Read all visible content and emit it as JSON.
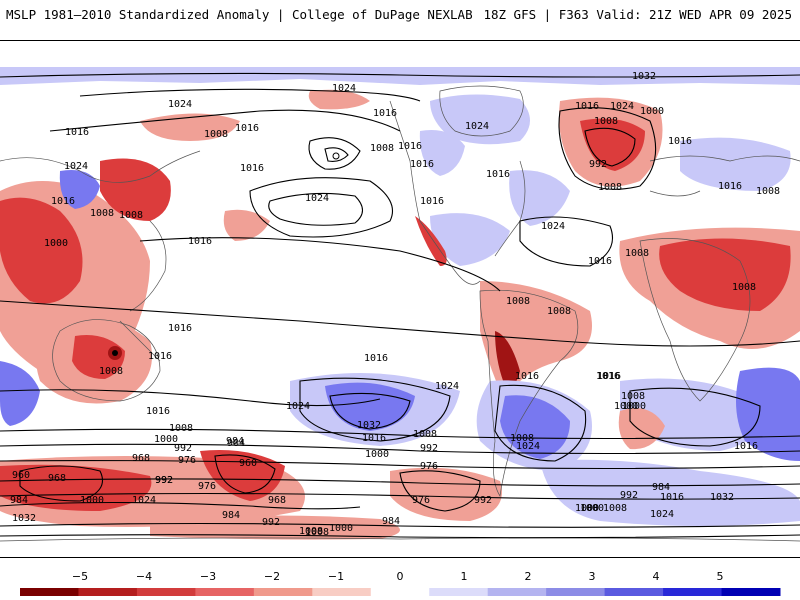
{
  "header": {
    "title_left": "MSLP 1981–2010 Standardized Anomaly | College of DuPage NEXLAB",
    "title_right": "18Z GFS | F363 Valid: 21Z WED APR 09 2025"
  },
  "colors": {
    "strong_negative": "#a01414",
    "negative": "#dc3c3c",
    "weak_negative": "#f0a096",
    "strong_positive": "#1e1ee6",
    "positive": "#7878f0",
    "weak_positive": "#c8c8f8",
    "isobar": "#000000",
    "coastline": "#555555"
  },
  "colorbar": {
    "ticks": [
      "−5",
      "−4",
      "−3",
      "−2",
      "−1",
      "0",
      "1",
      "2",
      "3",
      "4",
      "5"
    ],
    "colors": [
      "#7a0000",
      "#b41e1e",
      "#d23c3c",
      "#e66464",
      "#f09a8c",
      "#f8cdc4",
      "#ffffff",
      "#dcdcfa",
      "#b4b4f0",
      "#8c8ce6",
      "#5a5ae0",
      "#2828d8",
      "#0000b4"
    ]
  },
  "isobar_labels": [
    "1032",
    "1024",
    "1016",
    "1008",
    "1016",
    "1024",
    "1016",
    "1008",
    "1016",
    "1016",
    "1024",
    "1016",
    "1008",
    "1000",
    "1008",
    "1016",
    "1024",
    "1016",
    "1016",
    "1008",
    "1016",
    "1032",
    "1024",
    "1016",
    "1024",
    "1000",
    "1008",
    "992",
    "1008",
    "1016",
    "1016",
    "1008",
    "1008",
    "1016",
    "1008",
    "1008",
    "1016",
    "1024",
    "1024",
    "1016",
    "1016",
    "1016",
    "1008",
    "1016",
    "1024",
    "1032",
    "1016",
    "1008",
    "1000",
    "1000",
    "992",
    "984",
    "1008",
    "1016",
    "1000",
    "992",
    "1024",
    "1016",
    "1016",
    "1008",
    "1000",
    "992",
    "984",
    "976",
    "968",
    "960",
    "968",
    "984",
    "992",
    "1000",
    "1024",
    "976",
    "968",
    "960",
    "984",
    "992",
    "1008",
    "1000",
    "976",
    "976",
    "984",
    "992",
    "1000",
    "1008",
    "1024",
    "1032",
    "1016",
    "992",
    "984",
    "1000",
    "1008",
    "1032",
    "1008"
  ]
}
